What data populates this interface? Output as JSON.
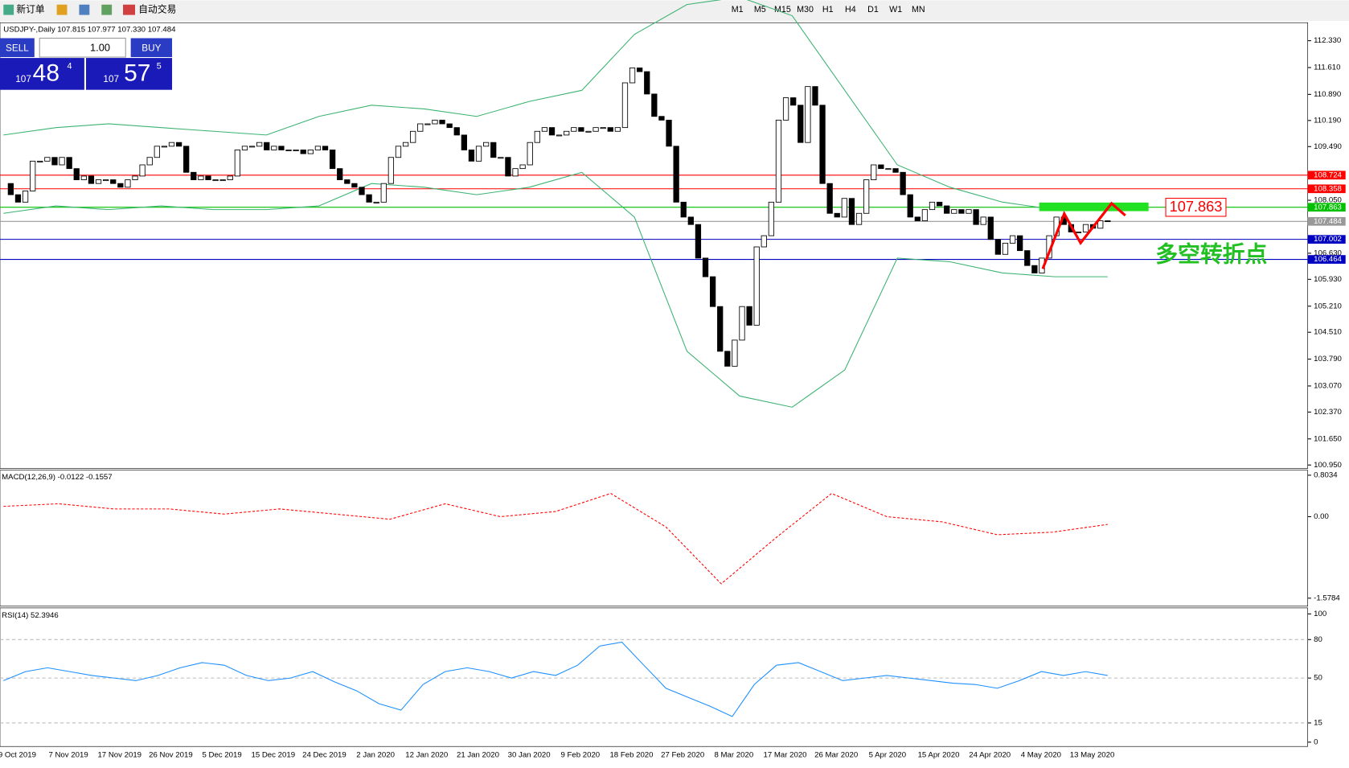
{
  "toolbar": {
    "new_order": "新订单",
    "auto_trading": "自动交易",
    "timeframes": [
      "M1",
      "M5",
      "M15",
      "M30",
      "H1",
      "H4",
      "D1",
      "W1",
      "MN"
    ]
  },
  "trade_panel": {
    "sell": "SELL",
    "buy": "BUY",
    "lots": "1.00",
    "bid": [
      "107",
      "48",
      "4"
    ],
    "ask": [
      "107",
      "57",
      "5"
    ]
  },
  "chart_data": [
    {
      "type": "candlestick",
      "title": "USDJPY-,Daily 107.815 107.977 107.330 107.484",
      "x_labels": [
        "9 Oct 2019",
        "7 Nov 2019",
        "17 Nov 2019",
        "26 Nov 2019",
        "5 Dec 2019",
        "15 Dec 2019",
        "24 Dec 2019",
        "2 Jan 2020",
        "12 Jan 2020",
        "21 Jan 2020",
        "30 Jan 2020",
        "9 Feb 2020",
        "18 Feb 2020",
        "27 Feb 2020",
        "8 Mar 2020",
        "17 Mar 2020",
        "26 Mar 2020",
        "5 Apr 2020",
        "15 Apr 2020",
        "24 Apr 2020",
        "4 May 2020",
        "13 May 2020"
      ],
      "close": [
        108.5,
        108.2,
        108.0,
        108.3,
        109.1,
        109.1,
        109.2,
        109.0,
        109.2,
        108.9,
        108.6,
        108.7,
        108.5,
        108.6,
        108.6,
        108.5,
        108.4,
        108.6,
        108.7,
        109.0,
        109.2,
        109.5,
        109.5,
        109.6,
        109.5,
        108.8,
        108.6,
        108.7,
        108.6,
        108.6,
        108.6,
        108.7,
        109.4,
        109.5,
        109.5,
        109.6,
        109.4,
        109.5,
        109.4,
        109.4,
        109.4,
        109.3,
        109.4,
        109.5,
        109.4,
        108.9,
        108.6,
        108.5,
        108.4,
        108.2,
        108.0,
        108.0,
        108.5,
        109.2,
        109.5,
        109.6,
        109.9,
        110.1,
        110.1,
        110.2,
        110.1,
        110.0,
        109.8,
        109.4,
        109.1,
        109.5,
        109.6,
        109.2,
        109.2,
        108.7,
        108.9,
        109.0,
        109.6,
        109.9,
        110.0,
        109.8,
        109.8,
        109.9,
        110.0,
        109.9,
        109.9,
        110.0,
        110.0,
        109.9,
        110.0,
        111.2,
        111.6,
        111.5,
        110.9,
        110.3,
        110.2,
        109.5,
        108.0,
        107.6,
        107.4,
        106.5,
        106.0,
        105.2,
        104.0,
        103.6,
        104.3,
        105.2,
        104.7,
        106.8,
        107.1,
        108.0,
        110.2,
        110.8,
        110.6,
        109.6,
        111.1,
        110.6,
        108.5,
        107.7,
        107.6,
        108.1,
        107.4,
        107.7,
        108.6,
        109.0,
        108.9,
        108.9,
        108.8,
        108.2,
        107.6,
        107.5,
        107.8,
        108.0,
        107.9,
        107.7,
        107.8,
        107.7,
        107.8,
        107.4,
        107.6,
        107.0,
        106.6,
        106.9,
        107.1,
        106.7,
        106.3,
        106.1,
        106.5,
        107.1,
        107.6,
        107.4,
        107.2,
        107.2,
        107.4,
        107.3,
        107.5,
        107.484
      ],
      "bands": {
        "color": "#3cb371",
        "upper": [
          109.8,
          110.0,
          110.1,
          110.0,
          109.9,
          109.8,
          110.3,
          110.6,
          110.5,
          110.3,
          110.7,
          111.0,
          112.5,
          113.3,
          113.5,
          113.0,
          111.0,
          109.0,
          108.4,
          108.0,
          107.8,
          107.9
        ],
        "lower": [
          107.7,
          107.9,
          107.8,
          107.9,
          107.8,
          107.8,
          107.9,
          108.5,
          108.4,
          108.2,
          108.4,
          108.8,
          107.6,
          104.0,
          102.8,
          102.5,
          103.5,
          106.5,
          106.4,
          106.1,
          106.0,
          106.0
        ]
      },
      "ylim": [
        100.88,
        112.79
      ],
      "yticks": [
        {
          "value": 112.33,
          "label": "112.330"
        },
        {
          "value": 111.61,
          "label": "111.610"
        },
        {
          "value": 110.89,
          "label": "110.890"
        },
        {
          "value": 110.19,
          "label": "110.190"
        },
        {
          "value": 109.49,
          "label": "109.490"
        },
        {
          "value": 108.05,
          "label": "108.050"
        },
        {
          "value": 106.63,
          "label": "106.630"
        },
        {
          "value": 105.93,
          "label": "105.930"
        },
        {
          "value": 105.21,
          "label": "105.210"
        },
        {
          "value": 104.51,
          "label": "104.510"
        },
        {
          "value": 103.79,
          "label": "103.790"
        },
        {
          "value": 103.07,
          "label": "103.070"
        },
        {
          "value": 102.37,
          "label": "102.370"
        },
        {
          "value": 101.65,
          "label": "101.650"
        },
        {
          "value": 100.95,
          "label": "100.950"
        }
      ],
      "hlines": [
        {
          "value": 108.724,
          "color": "#ff0000"
        },
        {
          "value": 108.358,
          "color": "#ff0000"
        },
        {
          "value": 107.863,
          "color": "#00c000"
        },
        {
          "value": 107.484,
          "color": "#999999"
        },
        {
          "value": 107.002,
          "color": "#0000c0"
        },
        {
          "value": 106.464,
          "color": "#0000c0"
        }
      ],
      "annotation": "多空转折点"
    },
    {
      "type": "line",
      "title": "MACD(12,26,9) -0.0122 -0.1557",
      "color": "#ff0000",
      "values": [
        0.2,
        0.25,
        0.15,
        0.15,
        0.05,
        0.15,
        0.05,
        -0.05,
        0.25,
        0.0,
        0.1,
        0.45,
        -0.2,
        -1.3,
        -0.4,
        0.45,
        0.0,
        -0.1,
        -0.35,
        -0.3,
        -0.15
      ],
      "ylim": [
        -1.717,
        0.867
      ],
      "yticks": [
        0.8034,
        {
          "value": 0,
          "label": "0.00"
        },
        -1.5784
      ]
    },
    {
      "type": "line",
      "title": "RSI(14) 52.3946",
      "color": "#1e90ff",
      "values": [
        48,
        55,
        58,
        55,
        52,
        50,
        48,
        52,
        58,
        62,
        60,
        52,
        48,
        50,
        55,
        47,
        40,
        30,
        25,
        45,
        55,
        58,
        55,
        50,
        55,
        52,
        60,
        75,
        78,
        60,
        42,
        35,
        28,
        20,
        45,
        60,
        62,
        55,
        48,
        50,
        52,
        50,
        48,
        46,
        45,
        42,
        48,
        55,
        52,
        55,
        52
      ],
      "ylim": [
        0,
        100
      ],
      "yticks": [
        100,
        80,
        50,
        15,
        0
      ]
    }
  ]
}
